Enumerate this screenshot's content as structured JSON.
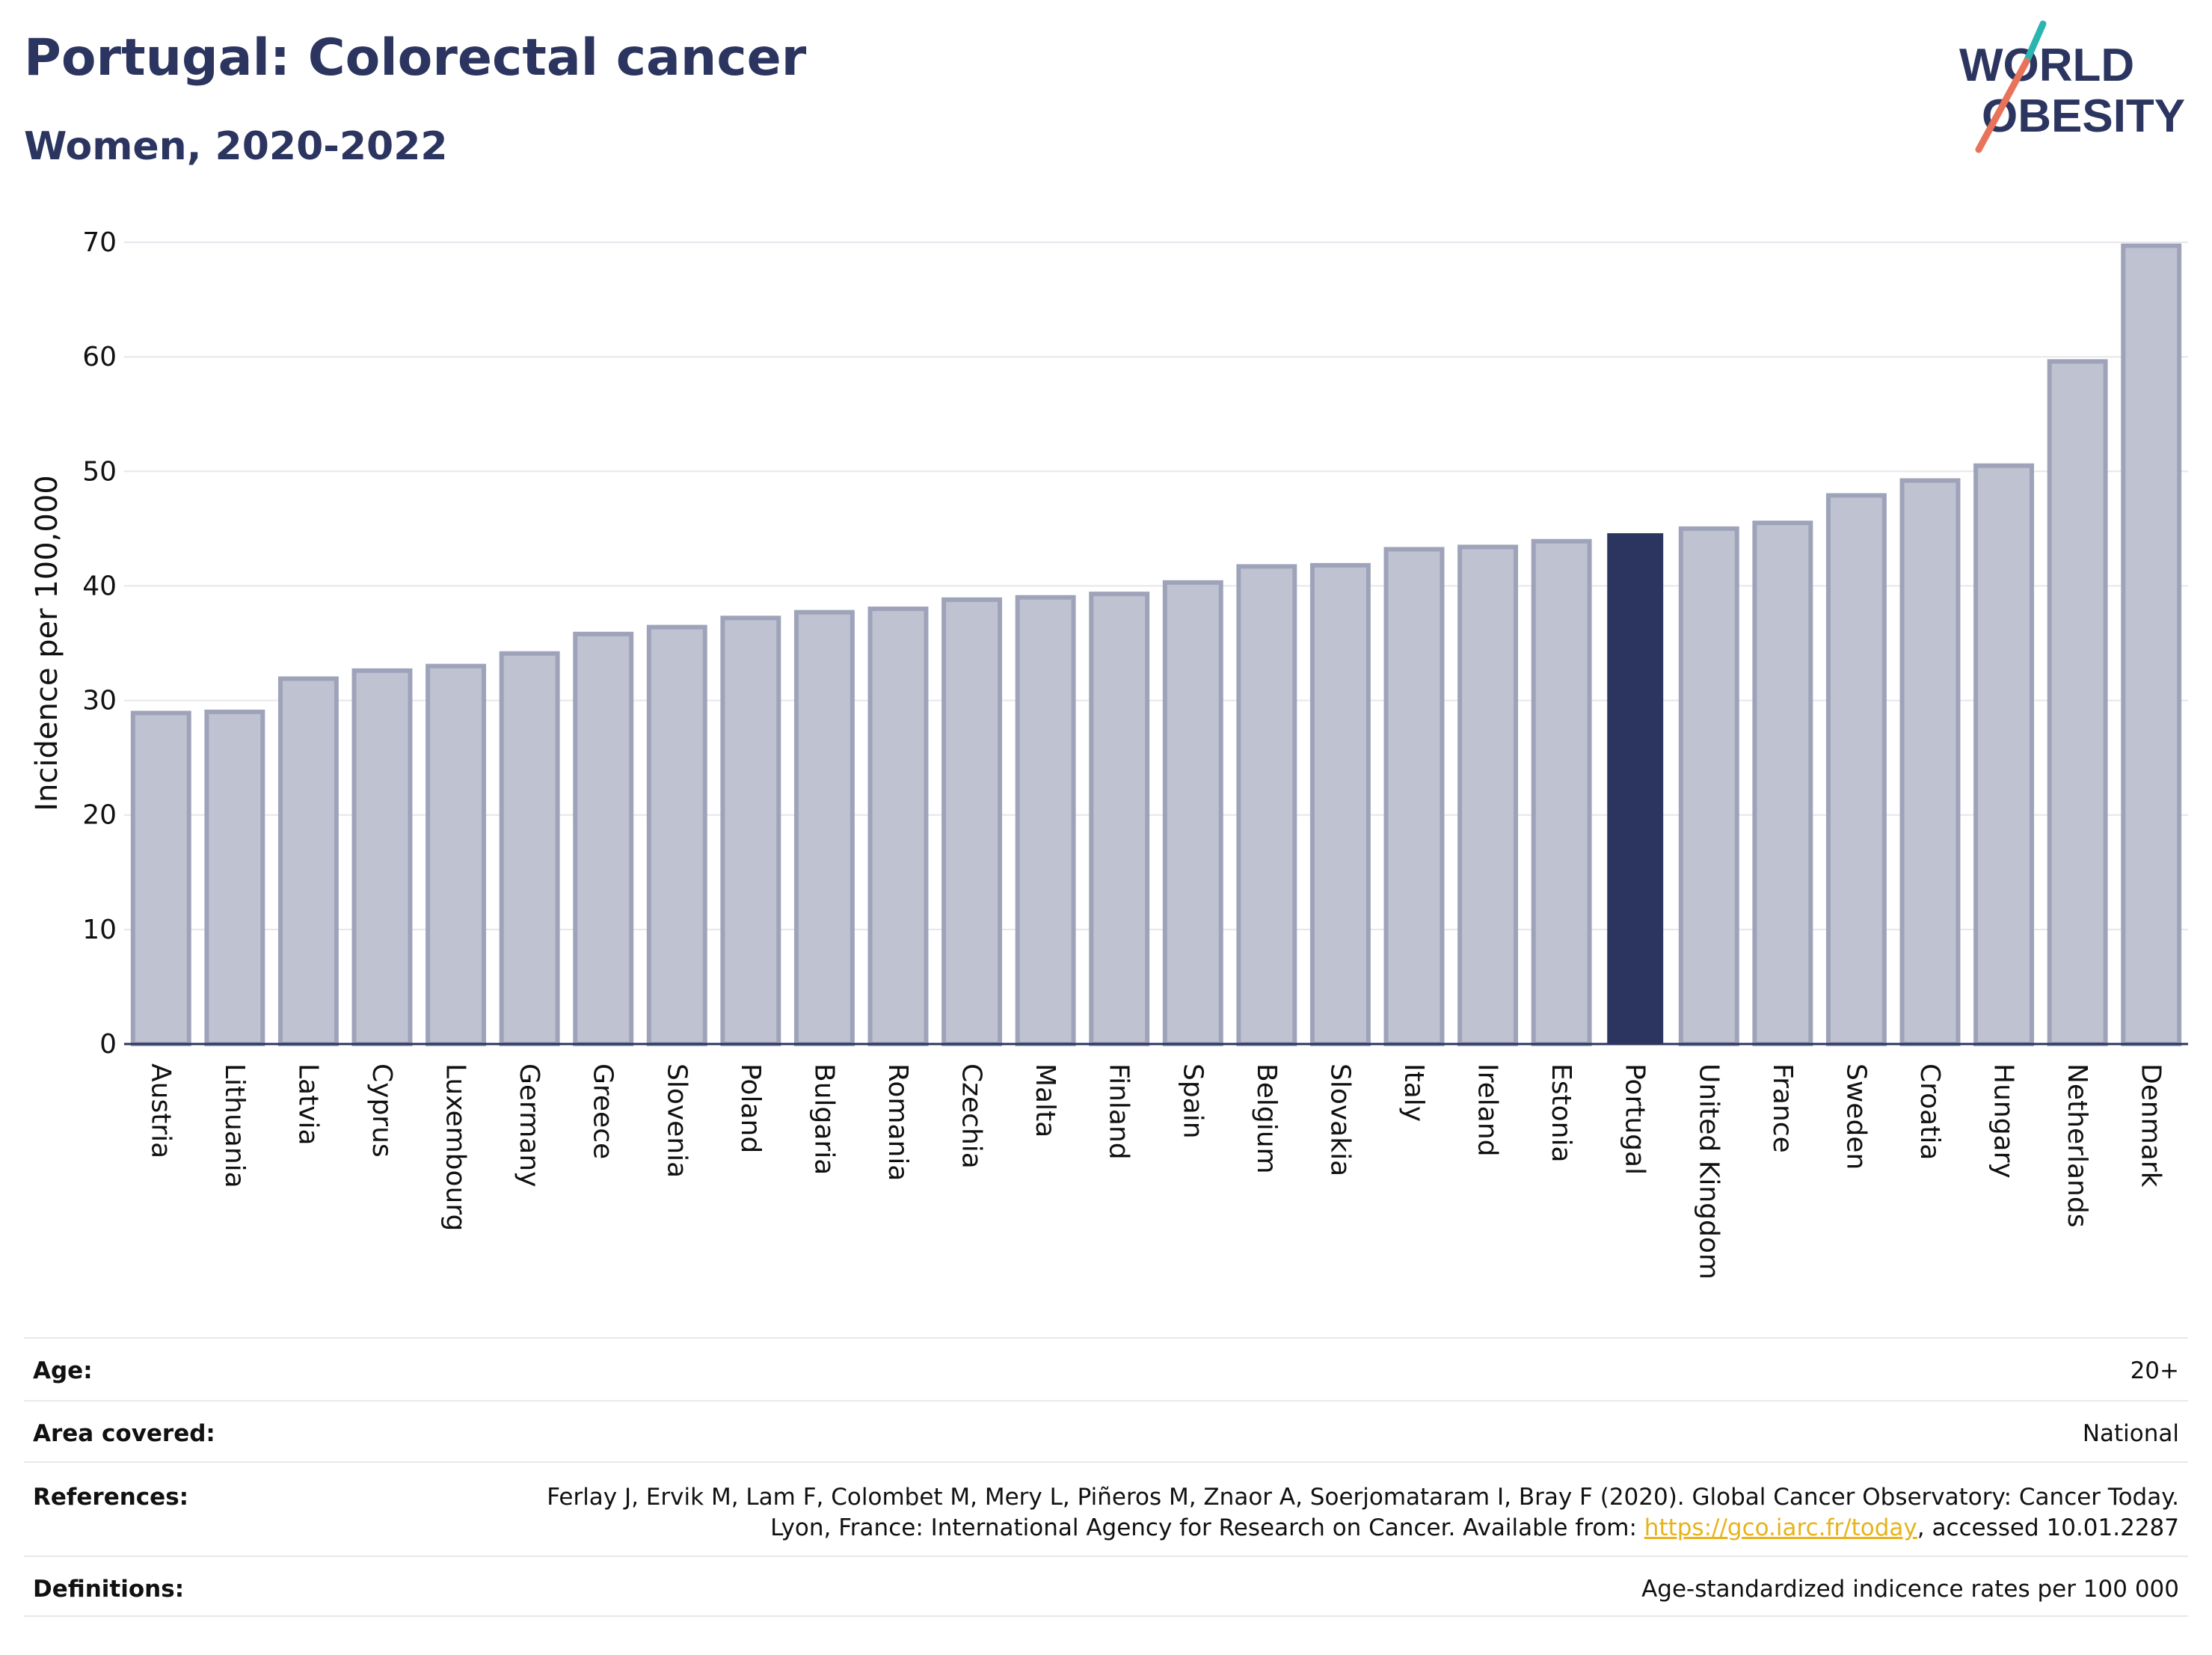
{
  "header": {
    "title": "Portugal: Colorectal cancer",
    "subtitle": "Women, 2020-2022"
  },
  "logo": {
    "line1": "WORLD",
    "line2": "OBESITY",
    "colors": {
      "text": "#2b3560",
      "slash_teal": "#2bb5b0",
      "slash_coral": "#e8735a"
    }
  },
  "chart_data": {
    "type": "bar",
    "ylabel": "Incidence per 100,000",
    "xlabel": "",
    "ylim": [
      0,
      70
    ],
    "yticks": [
      0,
      10,
      20,
      30,
      40,
      50,
      60,
      70
    ],
    "grid": true,
    "highlight": "Portugal",
    "colors": {
      "bar": "#bfc2d0",
      "bar_border": "#9ea3ba",
      "highlight": "#2b3560",
      "axis": "#2b3560",
      "grid": "#e6e6ec"
    },
    "categories": [
      "Austria",
      "Lithuania",
      "Latvia",
      "Cyprus",
      "Luxembourg",
      "Germany",
      "Greece",
      "Slovenia",
      "Poland",
      "Bulgaria",
      "Romania",
      "Czechia",
      "Malta",
      "Finland",
      "Spain",
      "Belgium",
      "Slovakia",
      "Italy",
      "Ireland",
      "Estonia",
      "Portugal",
      "United Kingdom",
      "France",
      "Sweden",
      "Croatia",
      "Hungary",
      "Netherlands",
      "Denmark"
    ],
    "values": [
      28.9,
      29.0,
      31.9,
      32.6,
      33.0,
      34.1,
      35.8,
      36.4,
      37.2,
      37.7,
      38.0,
      38.8,
      39.0,
      39.3,
      40.3,
      41.7,
      41.8,
      43.2,
      43.4,
      43.9,
      44.6,
      45.0,
      45.5,
      47.9,
      49.2,
      50.5,
      59.6,
      69.7
    ]
  },
  "info": {
    "age_label": "Age:",
    "age_value": "20+",
    "area_label": "Area covered:",
    "area_value": "National",
    "references_label": "References:",
    "references_text_before": "Ferlay J, Ervik M, Lam F, Colombet M, Mery L, Piñeros M, Znaor A, Soerjomataram I, Bray F (2020). Global Cancer Observatory: Cancer Today. Lyon, France: International Agency for Research on Cancer. Available from: ",
    "references_link": "https://gco.iarc.fr/today",
    "references_text_after": ", accessed 10.01.2287",
    "definitions_label": "Definitions:",
    "definitions_value": "Age-standardized indicence rates per 100 000"
  }
}
